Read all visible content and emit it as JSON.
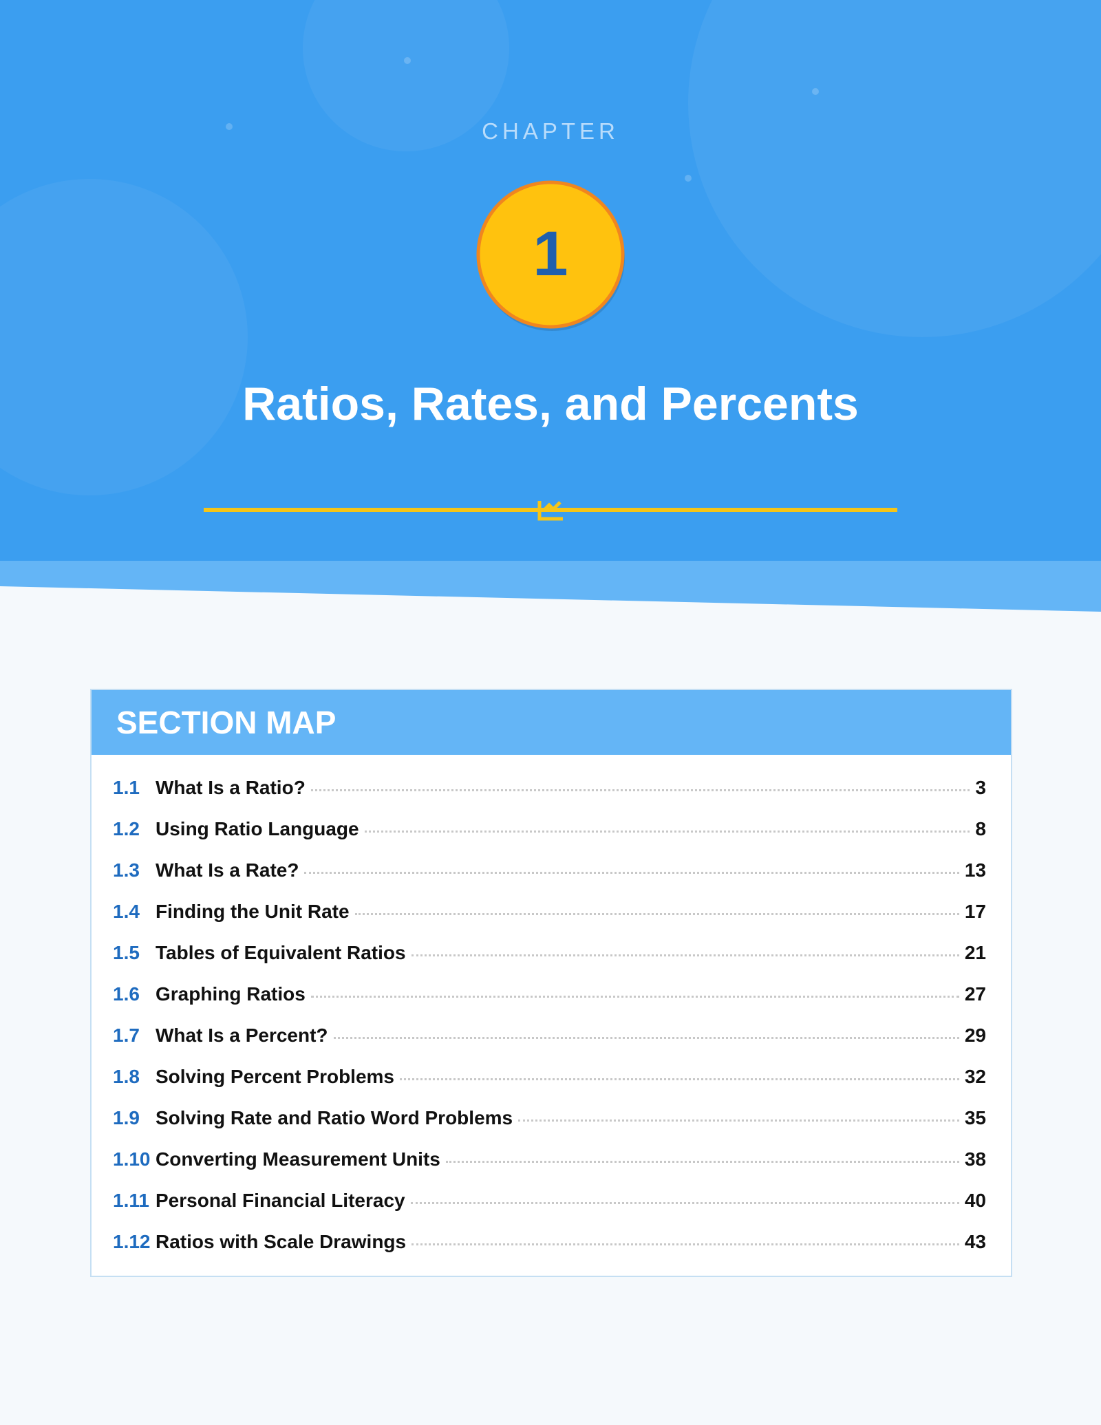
{
  "header": {
    "label": "CHAPTER",
    "number": 1,
    "title": "Ratios, Rates, and Percents"
  },
  "section_map": {
    "title": "SECTION MAP",
    "sections": [
      {
        "number": "1.1",
        "title": "What Is a Ratio?",
        "page": 3
      },
      {
        "number": "1.2",
        "title": "Using Ratio Language",
        "page": 8
      },
      {
        "number": "1.3",
        "title": "What Is a Rate?",
        "page": 13
      },
      {
        "number": "1.4",
        "title": "Finding the Unit Rate",
        "page": 17
      },
      {
        "number": "1.5",
        "title": "Tables of Equivalent Ratios",
        "page": 21
      },
      {
        "number": "1.6",
        "title": "Graphing Ratios",
        "page": 27
      },
      {
        "number": "1.7",
        "title": "What Is a Percent?",
        "page": 29
      },
      {
        "number": "1.8",
        "title": "Solving Percent Problems",
        "page": 32
      },
      {
        "number": "1.9",
        "title": "Solving Rate and Ratio Word Problems",
        "page": 35
      },
      {
        "number": "1.10",
        "title": "Converting Measurement Units",
        "page": 38
      },
      {
        "number": "1.11",
        "title": "Personal Financial Literacy",
        "page": 40
      },
      {
        "number": "1.12",
        "title": "Ratios with Scale Drawings",
        "page": 43
      }
    ]
  }
}
